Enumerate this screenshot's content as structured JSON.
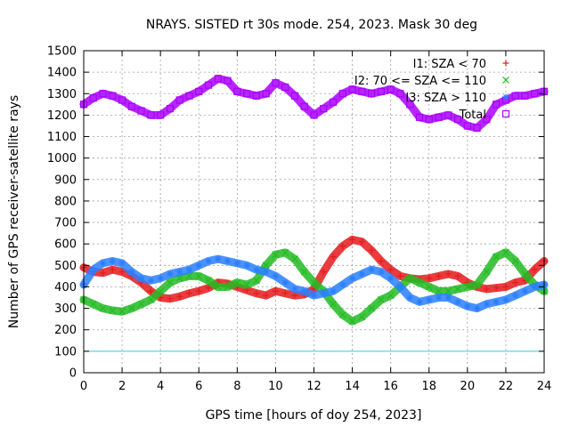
{
  "chart_data": {
    "type": "scatter",
    "title": "NRAYS. SISTED rt 30s mode. 254, 2023. Mask 30 deg",
    "xlabel": "GPS time [hours of doy 254, 2023]",
    "ylabel": "Number of GPS receiver-satellite rays",
    "xlim": [
      0,
      24
    ],
    "ylim": [
      0,
      1500
    ],
    "xticks": [
      "0",
      "2",
      "4",
      "6",
      "8",
      "10",
      "12",
      "14",
      "16",
      "18",
      "20",
      "22",
      "24"
    ],
    "yticks": [
      "0",
      "100",
      "200",
      "300",
      "400",
      "500",
      "600",
      "700",
      "800",
      "900",
      "1000",
      "1100",
      "1200",
      "1300",
      "1400",
      "1500"
    ],
    "grid": true,
    "legend_position": "top-right",
    "reference_line": {
      "y": 100,
      "color": "#33ccdd"
    },
    "series": [
      {
        "name": "I1: SZA < 70",
        "marker": "+",
        "color": "#e41a1c",
        "x": [
          0,
          0.5,
          1,
          1.5,
          2,
          2.5,
          3,
          3.5,
          4,
          4.5,
          5,
          5.5,
          6,
          6.5,
          7,
          7.5,
          8,
          8.5,
          9,
          9.5,
          10,
          10.5,
          11,
          11.5,
          12,
          12.5,
          13,
          13.5,
          14,
          14.5,
          15,
          15.5,
          16,
          16.5,
          17,
          17.5,
          18,
          18.5,
          19,
          19.5,
          20,
          20.5,
          21,
          21.5,
          22,
          22.5,
          23,
          23.5,
          24
        ],
        "values": [
          490,
          470,
          465,
          480,
          470,
          450,
          420,
          380,
          350,
          345,
          355,
          370,
          380,
          395,
          420,
          415,
          400,
          385,
          370,
          360,
          380,
          370,
          360,
          365,
          390,
          470,
          540,
          590,
          620,
          610,
          570,
          520,
          480,
          450,
          440,
          435,
          440,
          450,
          460,
          450,
          420,
          400,
          390,
          395,
          400,
          420,
          430,
          480,
          520
        ]
      },
      {
        "name": "I2: 70 <= SZA <= 110",
        "marker": "x",
        "color": "#22bb22",
        "x": [
          0,
          0.5,
          1,
          1.5,
          2,
          2.5,
          3,
          3.5,
          4,
          4.5,
          5,
          5.5,
          6,
          6.5,
          7,
          7.5,
          8,
          8.5,
          9,
          9.5,
          10,
          10.5,
          11,
          11.5,
          12,
          12.5,
          13,
          13.5,
          14,
          14.5,
          15,
          15.5,
          16,
          16.5,
          17,
          17.5,
          18,
          18.5,
          19,
          19.5,
          20,
          20.5,
          21,
          21.5,
          22,
          22.5,
          23,
          23.5,
          24
        ],
        "values": [
          340,
          320,
          300,
          290,
          285,
          300,
          320,
          340,
          380,
          420,
          440,
          450,
          450,
          430,
          400,
          400,
          420,
          410,
          430,
          500,
          550,
          560,
          530,
          470,
          420,
          380,
          320,
          270,
          240,
          260,
          300,
          340,
          360,
          400,
          440,
          420,
          400,
          380,
          380,
          390,
          400,
          410,
          470,
          540,
          560,
          520,
          460,
          410,
          380
        ]
      },
      {
        "name": "I3: SZA > 110",
        "marker": "*",
        "color": "#2a7fff",
        "x": [
          0,
          0.5,
          1,
          1.5,
          2,
          2.5,
          3,
          3.5,
          4,
          4.5,
          5,
          5.5,
          6,
          6.5,
          7,
          7.5,
          8,
          8.5,
          9,
          9.5,
          10,
          10.5,
          11,
          11.5,
          12,
          12.5,
          13,
          13.5,
          14,
          14.5,
          15,
          15.5,
          16,
          16.5,
          17,
          17.5,
          18,
          18.5,
          19,
          19.5,
          20,
          20.5,
          21,
          21.5,
          22,
          22.5,
          23,
          23.5,
          24
        ],
        "values": [
          410,
          480,
          510,
          520,
          510,
          470,
          440,
          430,
          440,
          460,
          470,
          480,
          500,
          520,
          530,
          520,
          510,
          500,
          480,
          470,
          450,
          420,
          390,
          380,
          360,
          370,
          380,
          410,
          440,
          460,
          480,
          470,
          440,
          400,
          350,
          330,
          340,
          350,
          350,
          330,
          310,
          300,
          320,
          330,
          340,
          360,
          380,
          400,
          410
        ]
      },
      {
        "name": "Total",
        "marker": "square",
        "color": "#aa00ff",
        "x": [
          0,
          0.5,
          1,
          1.5,
          2,
          2.5,
          3,
          3.5,
          4,
          4.5,
          5,
          5.5,
          6,
          6.5,
          7,
          7.5,
          8,
          8.5,
          9,
          9.5,
          10,
          10.5,
          11,
          11.5,
          12,
          12.5,
          13,
          13.5,
          14,
          14.5,
          15,
          15.5,
          16,
          16.5,
          17,
          17.5,
          18,
          18.5,
          19,
          19.5,
          20,
          20.5,
          21,
          21.5,
          22,
          22.5,
          23,
          23.5,
          24
        ],
        "values": [
          1250,
          1280,
          1300,
          1290,
          1270,
          1240,
          1220,
          1200,
          1200,
          1230,
          1270,
          1290,
          1310,
          1340,
          1370,
          1360,
          1310,
          1300,
          1290,
          1300,
          1350,
          1330,
          1290,
          1240,
          1200,
          1230,
          1260,
          1300,
          1320,
          1310,
          1300,
          1310,
          1320,
          1300,
          1250,
          1190,
          1180,
          1190,
          1200,
          1180,
          1150,
          1140,
          1180,
          1250,
          1270,
          1290,
          1290,
          1300,
          1310
        ]
      }
    ]
  }
}
